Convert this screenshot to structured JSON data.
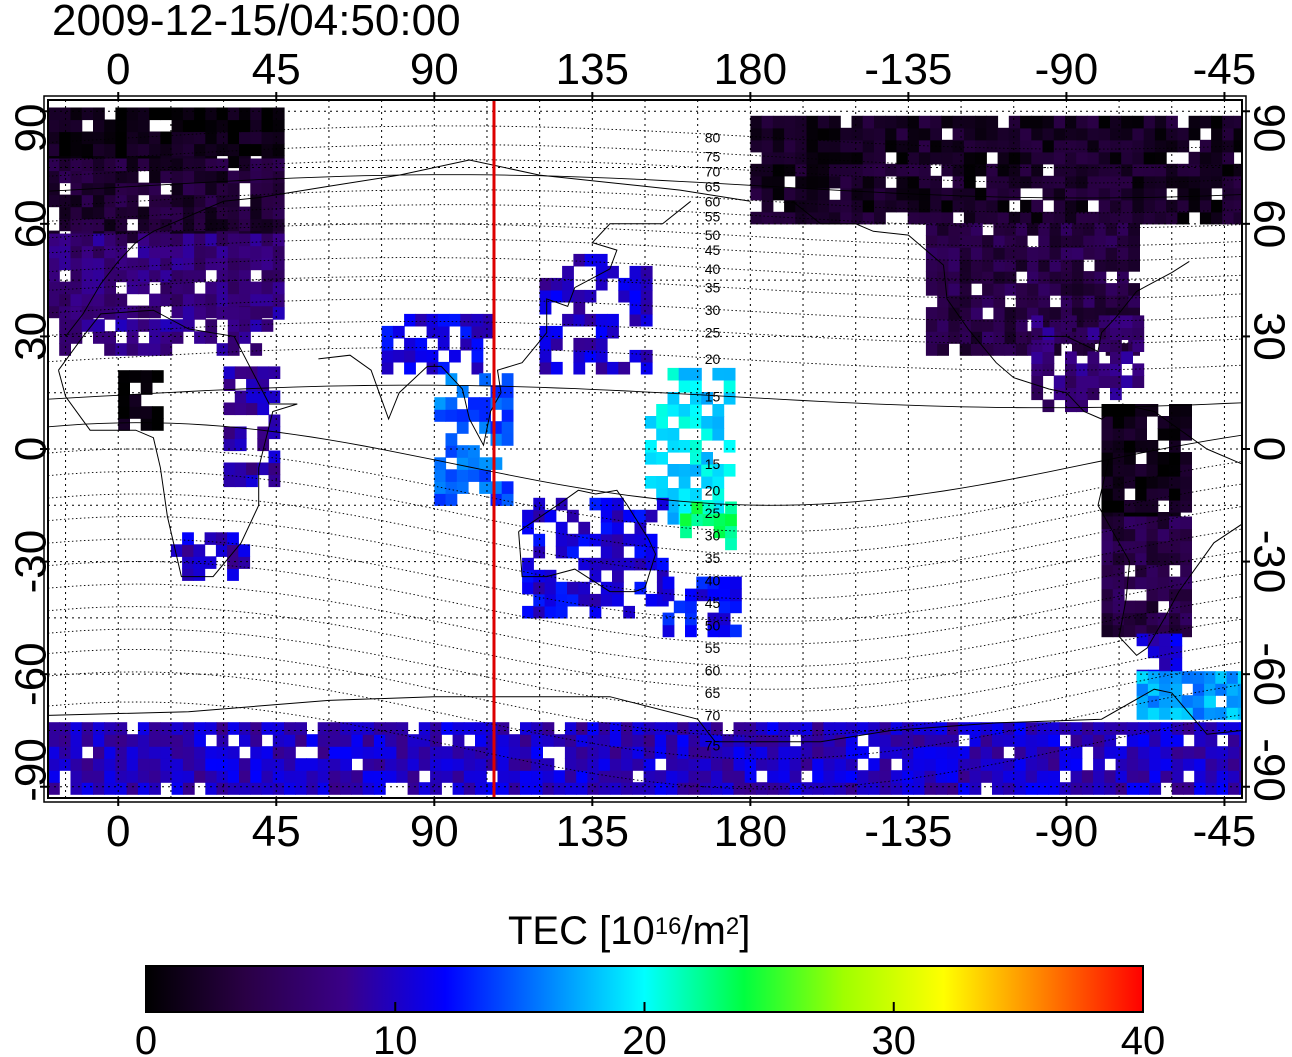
{
  "title": "2009-12-15/04:50:00",
  "map": {
    "lon_ticks_top": [
      "0",
      "45",
      "90",
      "135",
      "180",
      "-135",
      "-90",
      "-45"
    ],
    "lon_ticks_bottom": [
      "0",
      "45",
      "90",
      "135",
      "180",
      "-135",
      "-90",
      "-45"
    ],
    "lat_ticks_left": [
      "90",
      "60",
      "30",
      "0",
      "-30",
      "-60",
      "-90"
    ],
    "lat_ticks_right": [
      "90",
      "60",
      "30",
      "0",
      "-30",
      "-60",
      "-90"
    ],
    "tick_lon_values": [
      0,
      45,
      90,
      135,
      180,
      225,
      270,
      315
    ],
    "tick_lat_values": [
      90,
      60,
      30,
      0,
      -30,
      -60,
      -90
    ],
    "lon_range": [
      -20,
      320
    ],
    "lat_range": [
      -93,
      93
    ],
    "grid": "dotted, 15 degree spacing",
    "terminator_longitude": 107,
    "terminator_color": "#dd0000",
    "contour_labels": [
      {
        "text": "80",
        "lat": 83
      },
      {
        "text": "75",
        "lat": 78
      },
      {
        "text": "70",
        "lat": 74
      },
      {
        "text": "65",
        "lat": 70
      },
      {
        "text": "60",
        "lat": 66
      },
      {
        "text": "55",
        "lat": 62
      },
      {
        "text": "50",
        "lat": 57
      },
      {
        "text": "45",
        "lat": 53
      },
      {
        "text": "40",
        "lat": 48
      },
      {
        "text": "35",
        "lat": 43
      },
      {
        "text": "30",
        "lat": 37
      },
      {
        "text": "25",
        "lat": 31
      },
      {
        "text": "20",
        "lat": 24
      },
      {
        "text": "15",
        "lat": 14
      },
      {
        "text": "15",
        "lat": -4
      },
      {
        "text": "20",
        "lat": -11
      },
      {
        "text": "25",
        "lat": -17
      },
      {
        "text": "30",
        "lat": -23
      },
      {
        "text": "35",
        "lat": -29
      },
      {
        "text": "40",
        "lat": -35
      },
      {
        "text": "45",
        "lat": -41
      },
      {
        "text": "50",
        "lat": -47
      },
      {
        "text": "55",
        "lat": -53
      },
      {
        "text": "60",
        "lat": -59
      },
      {
        "text": "65",
        "lat": -65
      },
      {
        "text": "70",
        "lat": -71
      },
      {
        "text": "75",
        "lat": -79
      }
    ]
  },
  "colorbar": {
    "title_main": "TEC  [10",
    "title_sup1": "16",
    "title_mid": "/m",
    "title_sup2": "2",
    "title_end": "]",
    "min": 0,
    "max": 40,
    "tick_values": [
      0,
      10,
      20,
      30,
      40
    ],
    "tick_labels": [
      "0",
      "10",
      "20",
      "30",
      "40"
    ],
    "colors": [
      "#000000",
      "#2a0045",
      "#3a0088",
      "#0000ff",
      "#0080ff",
      "#00ffff",
      "#00ff40",
      "#a0ff00",
      "#ffff00",
      "#ff8000",
      "#ff0000"
    ]
  },
  "chart_data": {
    "type": "heatmap",
    "x_range": [
      -20,
      320
    ],
    "y_range": [
      -93,
      93
    ],
    "value_range": [
      0,
      40
    ],
    "regions": [
      {
        "lon": [
          -20,
          45
        ],
        "lat": [
          75,
          90
        ],
        "tec": 1
      },
      {
        "lon": [
          -20,
          45
        ],
        "lat": [
          55,
          75
        ],
        "tec": 3
      },
      {
        "lon": [
          -20,
          45
        ],
        "lat": [
          35,
          55
        ],
        "tec": 7
      },
      {
        "lon": [
          -20,
          45
        ],
        "lat": [
          25,
          35
        ],
        "tec": 8
      },
      {
        "lon": [
          0,
          10
        ],
        "lat": [
          5,
          20
        ],
        "tec": 1
      },
      {
        "lon": [
          15,
          35
        ],
        "lat": [
          -35,
          -25
        ],
        "tec": 10
      },
      {
        "lon": [
          30,
          45
        ],
        "lat": [
          -10,
          20
        ],
        "tec": 9
      },
      {
        "lon": [
          75,
          105
        ],
        "lat": [
          20,
          35
        ],
        "tec": 11
      },
      {
        "lon": [
          90,
          110
        ],
        "lat": [
          -15,
          20
        ],
        "tec": 15
      },
      {
        "lon": [
          120,
          150
        ],
        "lat": [
          20,
          50
        ],
        "tec": 10
      },
      {
        "lon": [
          150,
          175
        ],
        "lat": [
          -20,
          20
        ],
        "tec": 19
      },
      {
        "lon": [
          160,
          175
        ],
        "lat": [
          -30,
          -15
        ],
        "tec": 23
      },
      {
        "lon": [
          115,
          155
        ],
        "lat": [
          -45,
          -15
        ],
        "tec": 11
      },
      {
        "lon": [
          155,
          175
        ],
        "lat": [
          -50,
          -35
        ],
        "tec": 12
      },
      {
        "lon": [
          180,
          340
        ],
        "lat": [
          60,
          88
        ],
        "tec": 2
      },
      {
        "lon": [
          230,
          290
        ],
        "lat": [
          25,
          60
        ],
        "tec": 4
      },
      {
        "lon": [
          260,
          290
        ],
        "lat": [
          10,
          35
        ],
        "tec": 7
      },
      {
        "lon": [
          280,
          305
        ],
        "lat": [
          -20,
          10
        ],
        "tec": 1
      },
      {
        "lon": [
          280,
          305
        ],
        "lat": [
          -50,
          -20
        ],
        "tec": 4
      },
      {
        "lon": [
          290,
          300
        ],
        "lat": [
          -62,
          -50
        ],
        "tec": 10
      },
      {
        "lon": [
          290,
          320
        ],
        "lat": [
          -72,
          -60
        ],
        "tec": 17
      },
      {
        "lon": [
          -20,
          320
        ],
        "lat": [
          -92,
          -75
        ],
        "tec": 10
      }
    ]
  }
}
